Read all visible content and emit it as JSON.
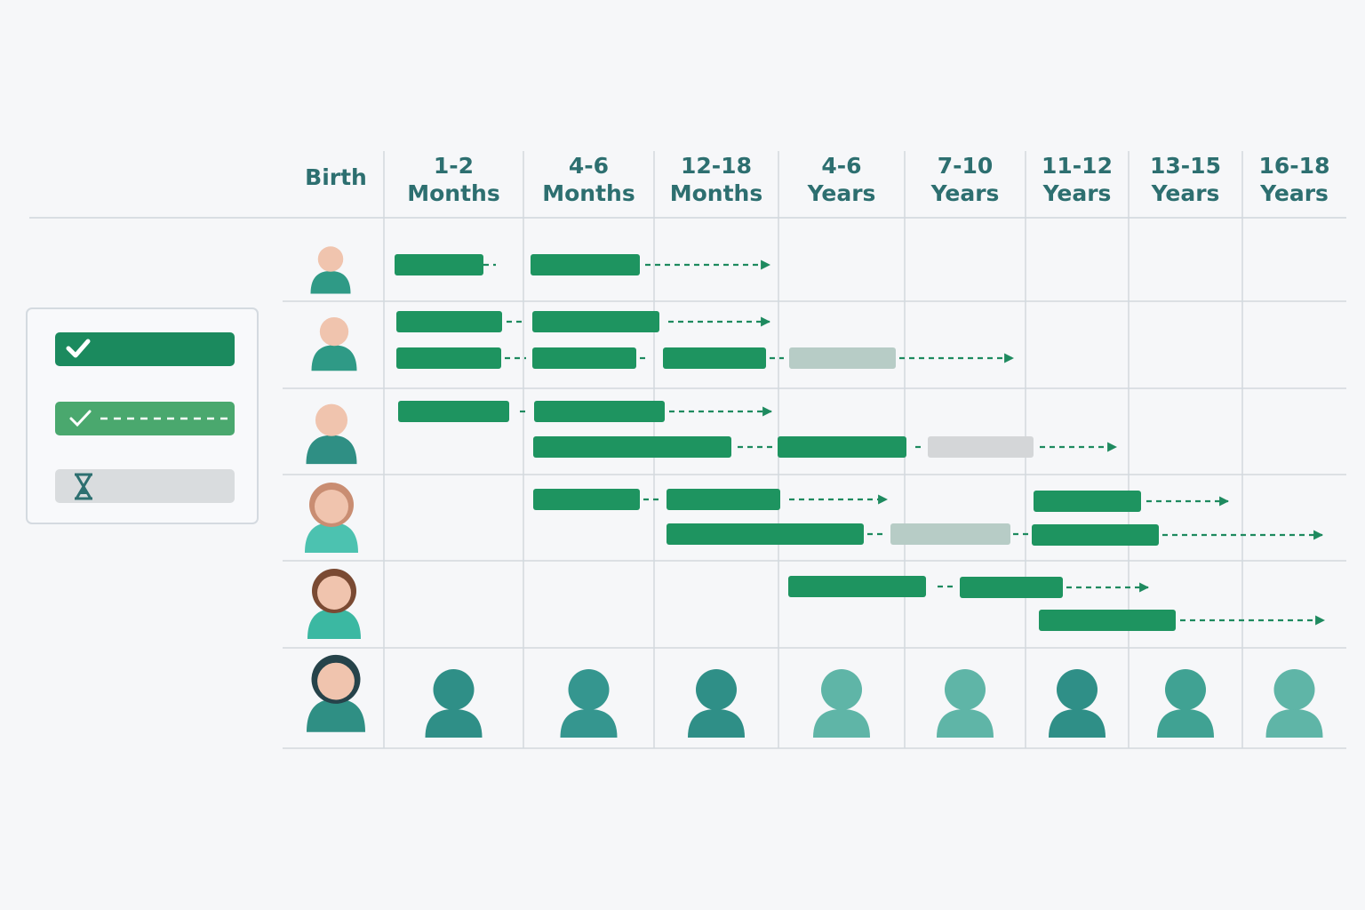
{
  "columns": [
    {
      "lines": [
        "Birth"
      ]
    },
    {
      "lines": [
        "1-2",
        "Months"
      ]
    },
    {
      "lines": [
        "4-6",
        "Months"
      ]
    },
    {
      "lines": [
        "12-18",
        "Months"
      ]
    },
    {
      "lines": [
        "4-6",
        "Years"
      ]
    },
    {
      "lines": [
        "7-10",
        "Years"
      ]
    },
    {
      "lines": [
        "11-12",
        "Years"
      ]
    },
    {
      "lines": [
        "13-15",
        "Years"
      ]
    },
    {
      "lines": [
        "16-18",
        "Years"
      ]
    }
  ]
}
